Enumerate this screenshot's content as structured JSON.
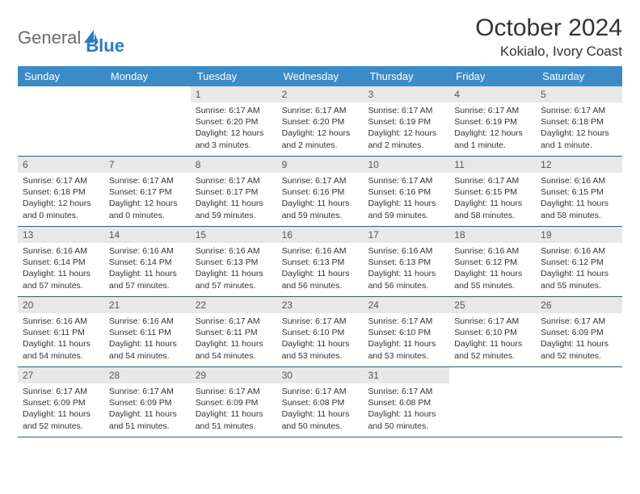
{
  "logo": {
    "g": "General",
    "b": "Blue"
  },
  "month": "October 2024",
  "location": "Kokialo, Ivory Coast",
  "colors": {
    "hdr_bg": "#3b8bc9",
    "hdr_text": "#ffffff",
    "daynum_bg": "#e8e8e8",
    "border": "#2c5a8a",
    "text": "#333333"
  },
  "days": [
    "Sunday",
    "Monday",
    "Tuesday",
    "Wednesday",
    "Thursday",
    "Friday",
    "Saturday"
  ],
  "weeks": [
    [
      null,
      null,
      {
        "n": "1",
        "r": "6:17 AM",
        "s": "6:20 PM",
        "d": "12 hours and 3 minutes."
      },
      {
        "n": "2",
        "r": "6:17 AM",
        "s": "6:20 PM",
        "d": "12 hours and 2 minutes."
      },
      {
        "n": "3",
        "r": "6:17 AM",
        "s": "6:19 PM",
        "d": "12 hours and 2 minutes."
      },
      {
        "n": "4",
        "r": "6:17 AM",
        "s": "6:19 PM",
        "d": "12 hours and 1 minute."
      },
      {
        "n": "5",
        "r": "6:17 AM",
        "s": "6:18 PM",
        "d": "12 hours and 1 minute."
      }
    ],
    [
      {
        "n": "6",
        "r": "6:17 AM",
        "s": "6:18 PM",
        "d": "12 hours and 0 minutes."
      },
      {
        "n": "7",
        "r": "6:17 AM",
        "s": "6:17 PM",
        "d": "12 hours and 0 minutes."
      },
      {
        "n": "8",
        "r": "6:17 AM",
        "s": "6:17 PM",
        "d": "11 hours and 59 minutes."
      },
      {
        "n": "9",
        "r": "6:17 AM",
        "s": "6:16 PM",
        "d": "11 hours and 59 minutes."
      },
      {
        "n": "10",
        "r": "6:17 AM",
        "s": "6:16 PM",
        "d": "11 hours and 59 minutes."
      },
      {
        "n": "11",
        "r": "6:17 AM",
        "s": "6:15 PM",
        "d": "11 hours and 58 minutes."
      },
      {
        "n": "12",
        "r": "6:16 AM",
        "s": "6:15 PM",
        "d": "11 hours and 58 minutes."
      }
    ],
    [
      {
        "n": "13",
        "r": "6:16 AM",
        "s": "6:14 PM",
        "d": "11 hours and 57 minutes."
      },
      {
        "n": "14",
        "r": "6:16 AM",
        "s": "6:14 PM",
        "d": "11 hours and 57 minutes."
      },
      {
        "n": "15",
        "r": "6:16 AM",
        "s": "6:13 PM",
        "d": "11 hours and 57 minutes."
      },
      {
        "n": "16",
        "r": "6:16 AM",
        "s": "6:13 PM",
        "d": "11 hours and 56 minutes."
      },
      {
        "n": "17",
        "r": "6:16 AM",
        "s": "6:13 PM",
        "d": "11 hours and 56 minutes."
      },
      {
        "n": "18",
        "r": "6:16 AM",
        "s": "6:12 PM",
        "d": "11 hours and 55 minutes."
      },
      {
        "n": "19",
        "r": "6:16 AM",
        "s": "6:12 PM",
        "d": "11 hours and 55 minutes."
      }
    ],
    [
      {
        "n": "20",
        "r": "6:16 AM",
        "s": "6:11 PM",
        "d": "11 hours and 54 minutes."
      },
      {
        "n": "21",
        "r": "6:16 AM",
        "s": "6:11 PM",
        "d": "11 hours and 54 minutes."
      },
      {
        "n": "22",
        "r": "6:17 AM",
        "s": "6:11 PM",
        "d": "11 hours and 54 minutes."
      },
      {
        "n": "23",
        "r": "6:17 AM",
        "s": "6:10 PM",
        "d": "11 hours and 53 minutes."
      },
      {
        "n": "24",
        "r": "6:17 AM",
        "s": "6:10 PM",
        "d": "11 hours and 53 minutes."
      },
      {
        "n": "25",
        "r": "6:17 AM",
        "s": "6:10 PM",
        "d": "11 hours and 52 minutes."
      },
      {
        "n": "26",
        "r": "6:17 AM",
        "s": "6:09 PM",
        "d": "11 hours and 52 minutes."
      }
    ],
    [
      {
        "n": "27",
        "r": "6:17 AM",
        "s": "6:09 PM",
        "d": "11 hours and 52 minutes."
      },
      {
        "n": "28",
        "r": "6:17 AM",
        "s": "6:09 PM",
        "d": "11 hours and 51 minutes."
      },
      {
        "n": "29",
        "r": "6:17 AM",
        "s": "6:09 PM",
        "d": "11 hours and 51 minutes."
      },
      {
        "n": "30",
        "r": "6:17 AM",
        "s": "6:08 PM",
        "d": "11 hours and 50 minutes."
      },
      {
        "n": "31",
        "r": "6:17 AM",
        "s": "6:08 PM",
        "d": "11 hours and 50 minutes."
      },
      null,
      null
    ]
  ],
  "labels": {
    "sunrise": "Sunrise:",
    "sunset": "Sunset:",
    "daylight": "Daylight:"
  }
}
